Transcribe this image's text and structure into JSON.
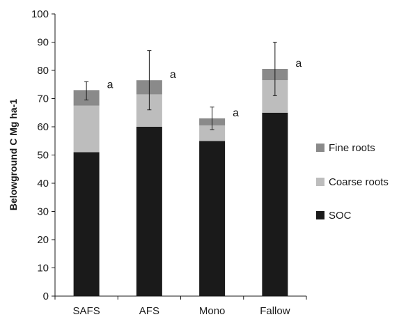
{
  "chart_data": {
    "type": "bar",
    "stacked": true,
    "ylabel": "Belowground C Mg ha-1",
    "ylim": [
      0,
      100
    ],
    "yticks": [
      0,
      10,
      20,
      30,
      40,
      50,
      60,
      70,
      80,
      90,
      100
    ],
    "categories": [
      "SAFS",
      "AFS",
      "Mono",
      "Fallow"
    ],
    "series": [
      {
        "name": "SOC",
        "color": "#1a1a1a",
        "values": [
          51,
          60,
          55,
          65
        ]
      },
      {
        "name": "Coarse roots",
        "color": "#bdbdbd",
        "values": [
          16.5,
          11.5,
          5.5,
          11.5
        ]
      },
      {
        "name": "Fine roots",
        "color": "#8a8a8a",
        "values": [
          5.5,
          5,
          2.5,
          4
        ]
      }
    ],
    "error_bars": [
      {
        "low": 69.5,
        "high": 76
      },
      {
        "low": 66,
        "high": 87
      },
      {
        "low": 59,
        "high": 67
      },
      {
        "low": 71,
        "high": 90
      }
    ],
    "significance_labels": [
      "a",
      "a",
      "a",
      "a"
    ],
    "legend_order": [
      "Fine roots",
      "Coarse roots",
      "SOC"
    ],
    "legend_position": "right",
    "grid": false
  }
}
